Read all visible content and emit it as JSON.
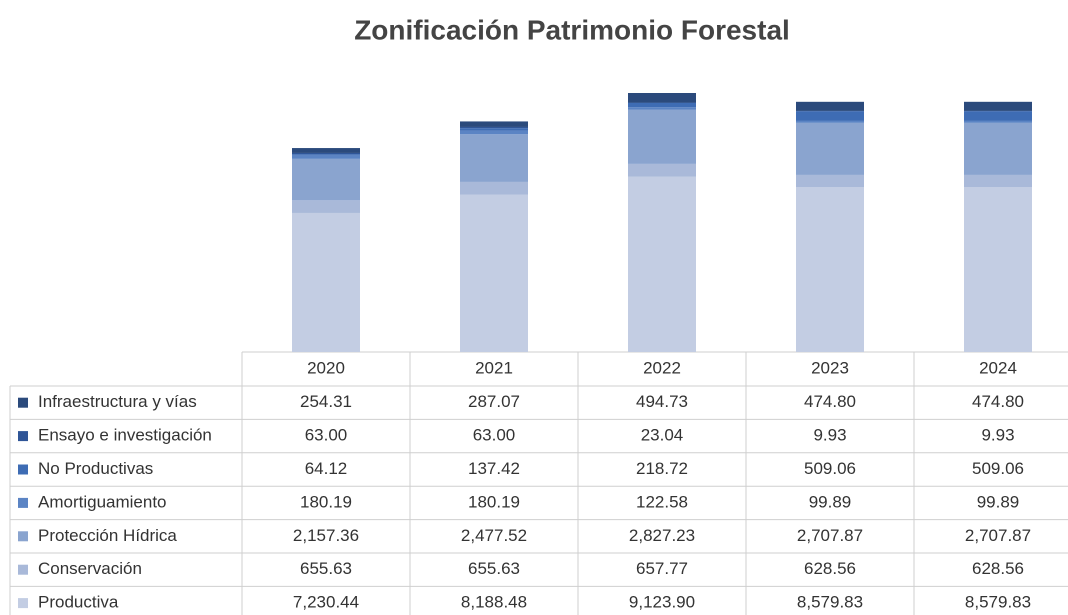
{
  "chart_data": {
    "type": "bar",
    "stacked": true,
    "title": "Zonificación Patrimonio Forestal",
    "categories": [
      "2020",
      "2021",
      "2022",
      "2023",
      "2024"
    ],
    "series": [
      {
        "name": "Infraestructura y vías",
        "color": "#2b4a7c",
        "values": [
          254.31,
          287.07,
          494.73,
          474.8,
          474.8
        ],
        "value_labels": [
          "254.31",
          "287.07",
          "494.73",
          "474.80",
          "474.80"
        ]
      },
      {
        "name": "Ensayo e investigación",
        "color": "#2f5597",
        "values": [
          63.0,
          63.0,
          23.04,
          9.93,
          9.93
        ],
        "value_labels": [
          "63.00",
          "63.00",
          "23.04",
          "9.93",
          "9.93"
        ]
      },
      {
        "name": "No Productivas",
        "color": "#3e6cb4",
        "values": [
          64.12,
          137.42,
          218.72,
          509.06,
          509.06
        ],
        "value_labels": [
          "64.12",
          "137.42",
          "218.72",
          "509.06",
          "509.06"
        ]
      },
      {
        "name": "Amortiguamiento",
        "color": "#5b84c4",
        "values": [
          180.19,
          180.19,
          122.58,
          99.89,
          99.89
        ],
        "value_labels": [
          "180.19",
          "180.19",
          "122.58",
          "99.89",
          "99.89"
        ]
      },
      {
        "name": "Protección Hídrica",
        "color": "#8aa4cf",
        "values": [
          2157.36,
          2477.52,
          2827.23,
          2707.87,
          2707.87
        ],
        "value_labels": [
          "2,157.36",
          "2,477.52",
          "2,827.23",
          "2,707.87",
          "2,707.87"
        ]
      },
      {
        "name": "Conservación",
        "color": "#a9b9d9",
        "values": [
          655.63,
          655.63,
          657.77,
          628.56,
          628.56
        ],
        "value_labels": [
          "655.63",
          "655.63",
          "657.77",
          "628.56",
          "628.56"
        ]
      },
      {
        "name": "Productiva",
        "color": "#c3cde3",
        "values": [
          7230.44,
          8188.48,
          9123.9,
          8579.83,
          8579.83
        ],
        "value_labels": [
          "7,230.44",
          "8,188.48",
          "9,123.90",
          "8,579.83",
          "8,579.83"
        ]
      }
    ]
  }
}
